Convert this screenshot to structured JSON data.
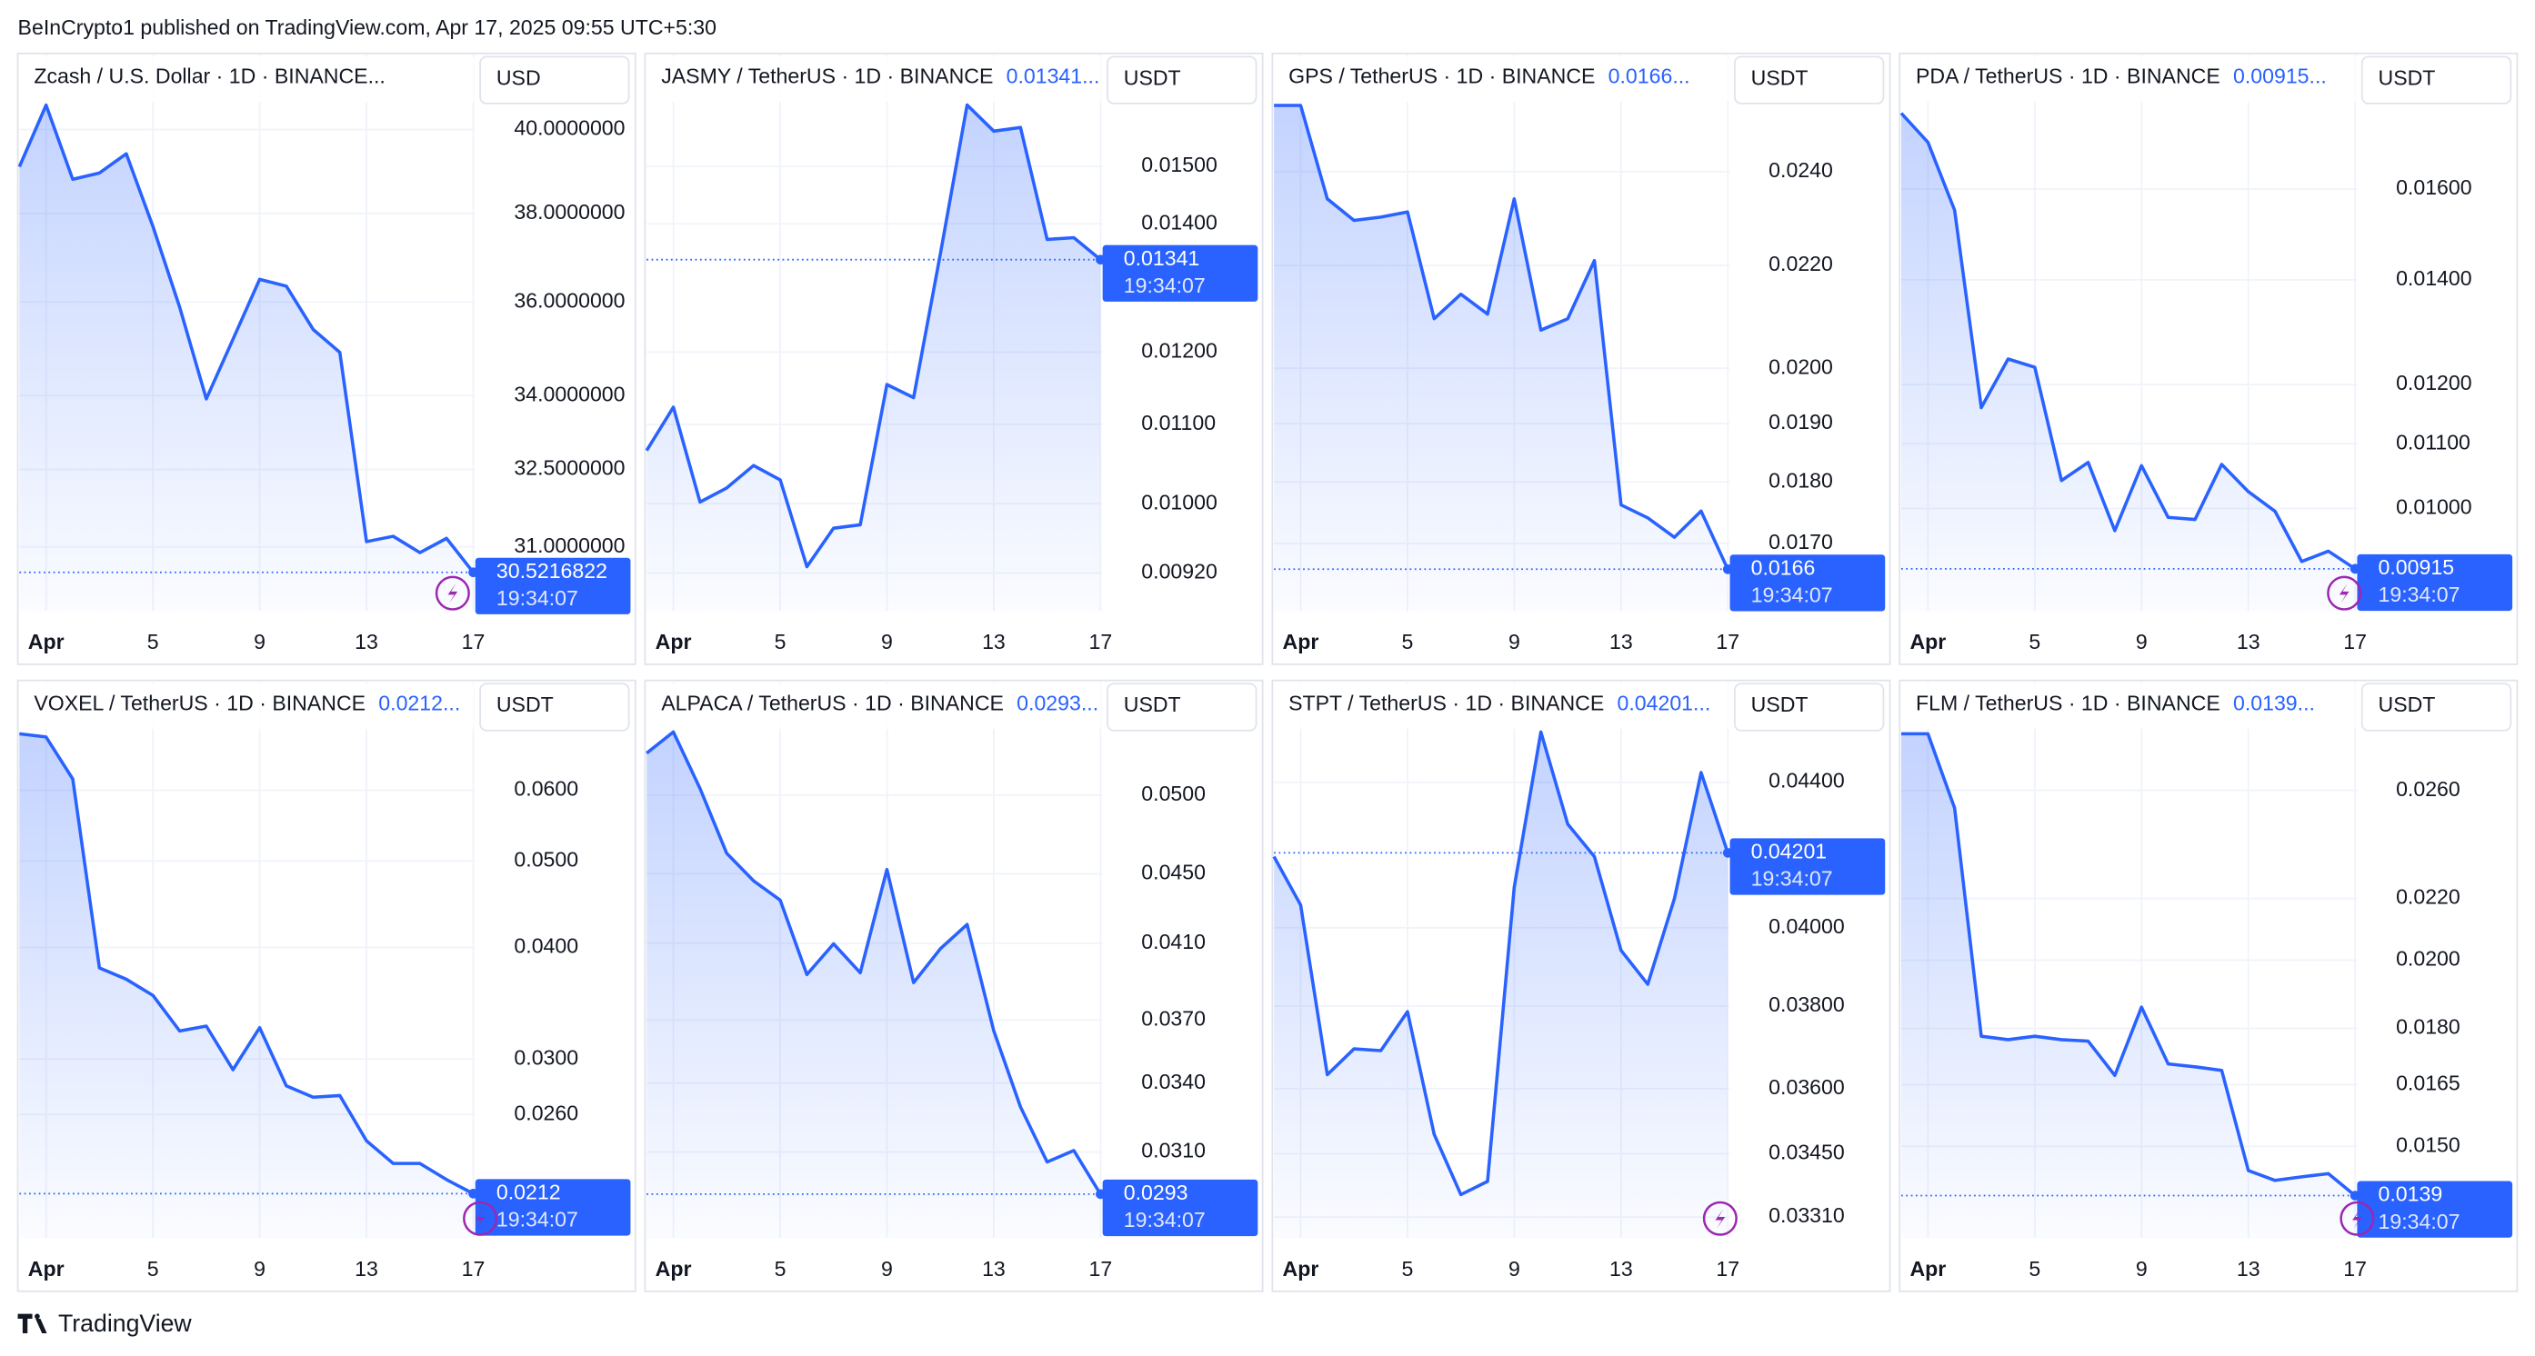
{
  "header": "BeInCrypto1 published on TradingView.com, Apr 17, 2025 09:55 UTC+5:30",
  "footer": "TradingView",
  "chart_data": [
    {
      "type": "line",
      "title": "Zcash / U.S. Dollar · 1D · BINANCE...",
      "currency": "USD",
      "countdown": "19:34:07",
      "color": "#2962ff",
      "log": true,
      "grid": true,
      "x": [
        0,
        1,
        2,
        3,
        4,
        5,
        6,
        7,
        8,
        9,
        10,
        11,
        12,
        13,
        14,
        15,
        16,
        17
      ],
      "xlim": [
        0,
        17.5
      ],
      "xticks": [
        {
          "value": 1,
          "label": "Apr"
        },
        5,
        9,
        13,
        17
      ],
      "ylim": [
        29.81,
        41.86
      ],
      "yticks": [
        {
          "value": 40,
          "label": "40.0000000"
        },
        {
          "value": 38,
          "label": "38.0000000"
        },
        {
          "value": 36,
          "label": "36.0000000"
        },
        {
          "value": 34,
          "label": "34.0000000"
        },
        {
          "value": 32.5,
          "label": "32.5000000"
        },
        {
          "value": 31,
          "label": "31.0000000"
        }
      ],
      "values": [
        39.1,
        40.6,
        38.8,
        38.95,
        39.41,
        37.7,
        35.89,
        33.93,
        35.19,
        36.5,
        36.35,
        35.4,
        34.91,
        31.1,
        31.2,
        30.89,
        31.16,
        30.5216822
      ]
    },
    {
      "type": "line",
      "title": "JASMY / TetherUS · 1D · BINANCE",
      "price": "0.01341...",
      "currency": "USDT",
      "countdown": "19:34:07",
      "color": "#2962ff",
      "log": true,
      "grid": true,
      "x": [
        0,
        1,
        2,
        3,
        4,
        5,
        6,
        7,
        8,
        9,
        10,
        11,
        12,
        13,
        14,
        15,
        16,
        17
      ],
      "xlim": [
        0,
        17.5
      ],
      "xticks": [
        {
          "value": 1,
          "label": "Apr"
        },
        5,
        9,
        13,
        17
      ],
      "ylim": [
        0.00879,
        0.01715
      ],
      "yticks": [
        {
          "value": 0.015,
          "label": "0.01500"
        },
        {
          "value": 0.014,
          "label": "0.01400"
        },
        {
          "value": 0.012,
          "label": "0.01200"
        },
        {
          "value": 0.011,
          "label": "0.01100"
        },
        {
          "value": 0.01,
          "label": "0.01000"
        },
        {
          "value": 0.0092,
          "label": "0.00920"
        }
      ],
      "values": [
        0.01066,
        0.01123,
        0.01002,
        0.01019,
        0.01047,
        0.01029,
        0.00927,
        0.00971,
        0.00975,
        0.01154,
        0.01136,
        0.01351,
        0.01615,
        0.01565,
        0.01572,
        0.01374,
        0.01377,
        0.01341
      ]
    },
    {
      "type": "line",
      "title": "GPS / TetherUS · 1D · BINANCE",
      "price": "0.0166...",
      "currency": "USDT",
      "countdown": "19:34:07",
      "color": "#2962ff",
      "log": true,
      "grid": true,
      "x": [
        0,
        1,
        2,
        3,
        4,
        5,
        6,
        7,
        8,
        9,
        10,
        11,
        12,
        13,
        14,
        15,
        16,
        17
      ],
      "xlim": [
        0,
        17.5
      ],
      "xticks": [
        {
          "value": 1,
          "label": "Apr"
        },
        5,
        9,
        13,
        17
      ],
      "ylim": [
        0.01597,
        0.02674
      ],
      "yticks": [
        {
          "value": 0.024,
          "label": "0.0240"
        },
        {
          "value": 0.022,
          "label": "0.0220"
        },
        {
          "value": 0.02,
          "label": "0.0200"
        },
        {
          "value": 0.019,
          "label": "0.0190"
        },
        {
          "value": 0.018,
          "label": "0.0180"
        },
        {
          "value": 0.017,
          "label": "0.0170"
        }
      ],
      "values": [
        0.02552,
        0.02552,
        0.0234,
        0.02294,
        0.02301,
        0.02312,
        0.02094,
        0.02142,
        0.02103,
        0.0234,
        0.02072,
        0.02094,
        0.0221,
        0.01762,
        0.01741,
        0.0171,
        0.01752,
        0.0166
      ]
    },
    {
      "type": "line",
      "title": "PDA / TetherUS · 1D · BINANCE",
      "price": "0.00915...",
      "currency": "USDT",
      "countdown": "19:34:07",
      "color": "#2962ff",
      "log": true,
      "grid": true,
      "x": [
        0,
        1,
        2,
        3,
        4,
        5,
        6,
        7,
        8,
        9,
        10,
        11,
        12,
        13,
        14,
        15,
        16,
        17
      ],
      "xlim": [
        0,
        17.5
      ],
      "xticks": [
        {
          "value": 1,
          "label": "Apr"
        },
        5,
        9,
        13,
        17
      ],
      "ylim": [
        0.0086,
        0.01949
      ],
      "yticks": [
        {
          "value": 0.016,
          "label": "0.01600"
        },
        {
          "value": 0.014,
          "label": "0.01400"
        },
        {
          "value": 0.012,
          "label": "0.01200"
        },
        {
          "value": 0.011,
          "label": "0.01100"
        },
        {
          "value": 0.01,
          "label": "0.01000"
        }
      ],
      "values": [
        0.01789,
        0.01714,
        0.01551,
        0.0116,
        0.01246,
        0.01231,
        0.01042,
        0.0107,
        0.00968,
        0.01065,
        0.00987,
        0.00984,
        0.01067,
        0.01025,
        0.00996,
        0.00925,
        0.00939,
        0.00915
      ]
    },
    {
      "type": "line",
      "title": "VOXEL / TetherUS · 1D · BINANCE",
      "price": "0.0212...",
      "currency": "USDT",
      "countdown": "19:34:07",
      "color": "#2962ff",
      "log": true,
      "grid": true,
      "x": [
        0,
        1,
        2,
        3,
        4,
        5,
        6,
        7,
        8,
        9,
        10,
        11,
        12,
        13,
        14,
        15,
        16,
        17
      ],
      "xlim": [
        0,
        17.5
      ],
      "xticks": [
        {
          "value": 1,
          "label": "Apr"
        },
        5,
        9,
        13,
        17
      ],
      "ylim": [
        0.01891,
        0.07932
      ],
      "yticks": [
        {
          "value": 0.06,
          "label": "0.0600"
        },
        {
          "value": 0.05,
          "label": "0.0500"
        },
        {
          "value": 0.04,
          "label": "0.0400"
        },
        {
          "value": 0.03,
          "label": "0.0300"
        },
        {
          "value": 0.026,
          "label": "0.0260"
        }
      ],
      "values": [
        0.06942,
        0.06884,
        0.06178,
        0.03794,
        0.03685,
        0.03535,
        0.03225,
        0.03266,
        0.02918,
        0.03252,
        0.02799,
        0.02719,
        0.0273,
        0.02429,
        0.02292,
        0.02292,
        0.02198,
        0.0212
      ]
    },
    {
      "type": "line",
      "title": "ALPACA / TetherUS · 1D · BINANCE",
      "price": "0.0293...",
      "currency": "USDT",
      "countdown": "19:34:07",
      "color": "#2962ff",
      "log": true,
      "grid": true,
      "x": [
        0,
        1,
        2,
        3,
        4,
        5,
        6,
        7,
        8,
        9,
        10,
        11,
        12,
        13,
        14,
        15,
        16,
        17
      ],
      "xlim": [
        0,
        17.5
      ],
      "xticks": [
        {
          "value": 1,
          "label": "Apr"
        },
        5,
        9,
        13,
        17
      ],
      "ylim": [
        0.02763,
        0.05818
      ],
      "yticks": [
        {
          "value": 0.05,
          "label": "0.0500"
        },
        {
          "value": 0.045,
          "label": "0.0450"
        },
        {
          "value": 0.041,
          "label": "0.0410"
        },
        {
          "value": 0.037,
          "label": "0.0370"
        },
        {
          "value": 0.034,
          "label": "0.0340"
        },
        {
          "value": 0.031,
          "label": "0.0310"
        }
      ],
      "values": [
        0.05289,
        0.05441,
        0.05044,
        0.04625,
        0.04458,
        0.04344,
        0.03932,
        0.04097,
        0.03941,
        0.04526,
        0.0389,
        0.04071,
        0.04205,
        0.03646,
        0.03293,
        0.03059,
        0.03106,
        0.0293
      ]
    },
    {
      "type": "line",
      "title": "STPT / TetherUS · 1D · BINANCE",
      "price": "0.04201...",
      "currency": "USDT",
      "countdown": "19:34:07",
      "color": "#2962ff",
      "log": true,
      "grid": true,
      "x": [
        0,
        1,
        2,
        3,
        4,
        5,
        6,
        7,
        8,
        9,
        10,
        11,
        12,
        13,
        14,
        15,
        16,
        17
      ],
      "xlim": [
        0,
        17.5
      ],
      "xticks": [
        {
          "value": 1,
          "label": "Apr"
        },
        5,
        9,
        13,
        17
      ],
      "ylim": [
        0.03265,
        0.04698
      ],
      "yticks": [
        {
          "value": 0.044,
          "label": "0.04400"
        },
        {
          "value": 0.04,
          "label": "0.04000"
        },
        {
          "value": 0.038,
          "label": "0.03800"
        },
        {
          "value": 0.036,
          "label": "0.03600"
        },
        {
          "value": 0.0345,
          "label": "0.03450"
        },
        {
          "value": 0.0331,
          "label": "0.03310"
        }
      ],
      "values": [
        0.04191,
        0.0406,
        0.03633,
        0.03695,
        0.03691,
        0.03786,
        0.03494,
        0.03359,
        0.03388,
        0.04107,
        0.04547,
        0.04281,
        0.04191,
        0.03941,
        0.03855,
        0.04077,
        0.04428,
        0.04201
      ]
    },
    {
      "type": "line",
      "title": "FLM / TetherUS · 1D · BINANCE",
      "price": "0.0139...",
      "currency": "USDT",
      "countdown": "19:34:07",
      "color": "#2962ff",
      "log": true,
      "grid": true,
      "x": [
        0,
        1,
        2,
        3,
        4,
        5,
        6,
        7,
        8,
        9,
        10,
        11,
        12,
        13,
        14,
        15,
        16,
        17
      ],
      "xlim": [
        0,
        17.5
      ],
      "xticks": [
        {
          "value": 1,
          "label": "Apr"
        },
        5,
        9,
        13,
        17
      ],
      "ylim": [
        0.01302,
        0.03074
      ],
      "yticks": [
        {
          "value": 0.026,
          "label": "0.0260"
        },
        {
          "value": 0.022,
          "label": "0.0220"
        },
        {
          "value": 0.02,
          "label": "0.0200"
        },
        {
          "value": 0.018,
          "label": "0.0180"
        },
        0.0165,
        {
          "value": 0.015,
          "label": "0.0150"
        }
      ],
      "values": [
        0.02838,
        0.02838,
        0.0253,
        0.01778,
        0.01769,
        0.01778,
        0.01769,
        0.01765,
        0.01674,
        0.0186,
        0.01704,
        0.01696,
        0.01687,
        0.01445,
        0.01423,
        0.01431,
        0.01438,
        0.0139
      ]
    }
  ]
}
